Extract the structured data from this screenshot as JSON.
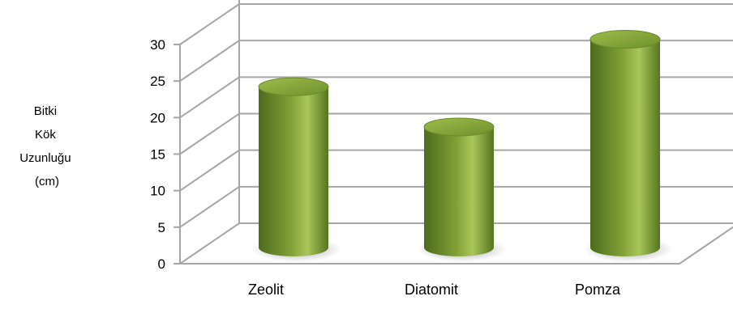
{
  "chart_data": {
    "type": "bar",
    "categories": [
      "Zeolit",
      "Diatomit",
      "Pomza"
    ],
    "values": [
      22,
      16.5,
      28.5
    ],
    "ylabel": "Bitki Kök Uzunluğu (cm)",
    "ylabel_lines": [
      "Bitki",
      "Kök",
      "Uzunluğu",
      "(cm)"
    ],
    "ylim": [
      0,
      30
    ],
    "yticks": [
      0,
      5,
      10,
      15,
      20,
      25,
      30
    ],
    "grid": true,
    "legend": "none",
    "style": "3d-cylinder",
    "colors": {
      "bar_dark": "#4e6b1c",
      "bar_mid": "#7f9f36",
      "bar_light": "#a9c659",
      "top_light": "#8fb03f",
      "grid": "#a6a6a6"
    }
  }
}
